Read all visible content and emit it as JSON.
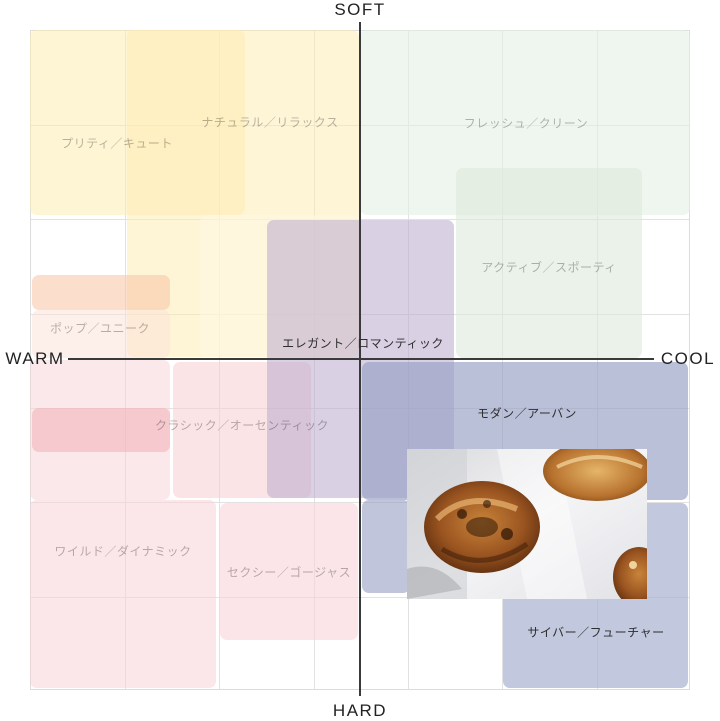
{
  "axes": {
    "top": "SOFT",
    "bottom": "HARD",
    "left": "WARM",
    "right": "COOL"
  },
  "regions": {
    "pretty": "プリティ／キュート",
    "natural": "ナチュラル／リラックス",
    "fresh": "フレッシュ／クリーン",
    "active": "アクティブ／スポーティ",
    "pop": "ポップ／ユニーク",
    "elegant": "エレガント／ロマンティック",
    "modern": "モダン／アーバン",
    "classic": "クラシック／オーセンティック",
    "wild": "ワイルド／ダイナミック",
    "sexy": "セクシー／ゴージャス",
    "cyber": "サイバー／フューチャー"
  },
  "colors": {
    "yellow": "#fdf0c4",
    "green": "#e6f0e6",
    "purple": "#c9bcd6",
    "pink": "#f8d3d8",
    "navy": "#a8afcb"
  },
  "photo": {
    "subject": "bread-bagel-photo"
  }
}
